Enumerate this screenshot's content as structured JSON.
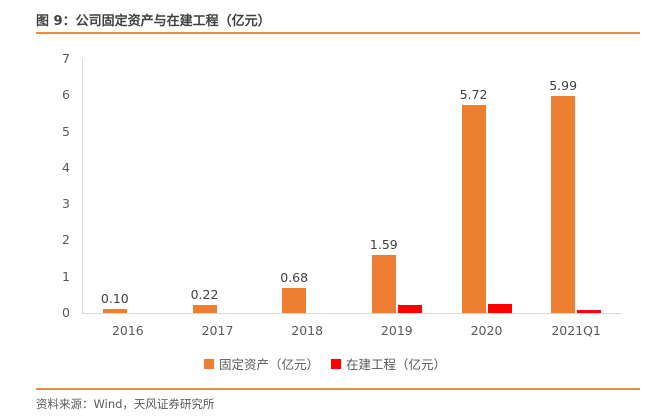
{
  "page": {
    "title": "图 9：公司固定资产与在建工程（亿元）",
    "source": "资料来源：Wind，天风证券研究所"
  },
  "colors": {
    "accent_rule": "#ED8B3F",
    "axis_line": "#D9D9D9",
    "axis_text": "#595959",
    "data_label_text": "#404040"
  },
  "chart_data": {
    "type": "bar",
    "title": "公司固定资产与在建工程（亿元）",
    "categories": [
      "2016",
      "2017",
      "2018",
      "2019",
      "2020",
      "2021Q1"
    ],
    "series": [
      {
        "name": "固定资产（亿元）",
        "color": "#ED7D31",
        "values": [
          0.1,
          0.22,
          0.68,
          1.59,
          5.72,
          5.99
        ],
        "labels": [
          "0.10",
          "0.22",
          "0.68",
          "1.59",
          "5.72",
          "5.99"
        ]
      },
      {
        "name": "在建工程（亿元）",
        "color": "#FF0000",
        "values": [
          0,
          0,
          0,
          0.22,
          0.25,
          0.08
        ],
        "labels": []
      }
    ],
    "xlabel": "",
    "ylabel": "",
    "ylim": [
      0,
      7
    ],
    "yticks": [
      0,
      1,
      2,
      3,
      4,
      5,
      6,
      7
    ],
    "grid": false,
    "legend_position": "bottom-center"
  }
}
